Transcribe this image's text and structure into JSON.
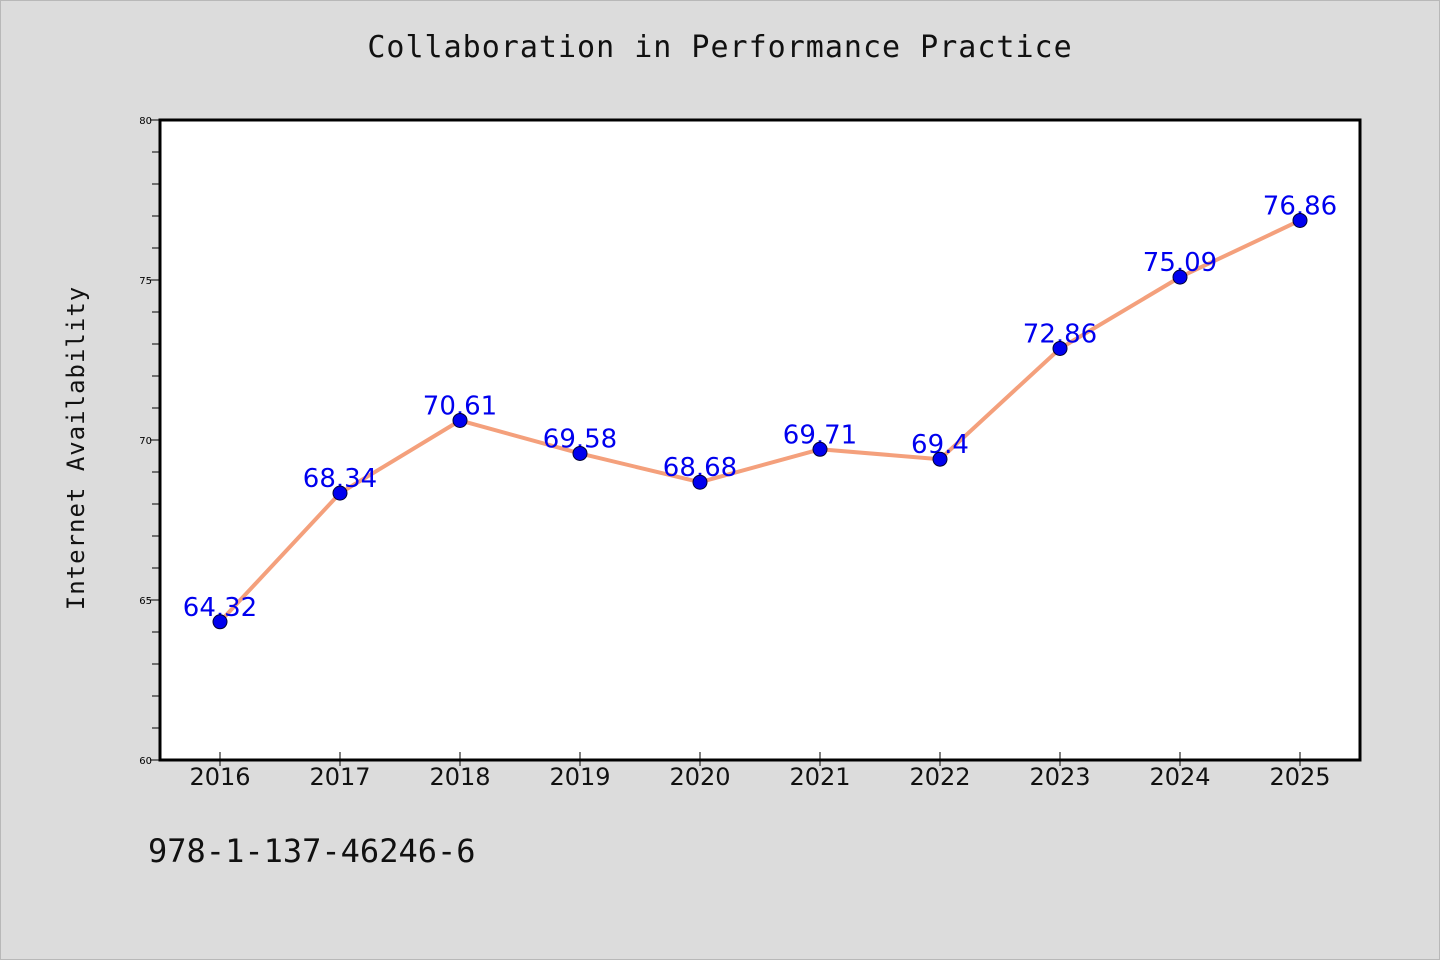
{
  "chart_data": {
    "type": "line",
    "title": "Collaboration in Performance Practice",
    "xlabel": "",
    "ylabel": "Internet Availability",
    "categories": [
      "2016",
      "2017",
      "2018",
      "2019",
      "2020",
      "2021",
      "2022",
      "2023",
      "2024",
      "2025"
    ],
    "series": [
      {
        "values": [
          64.32,
          68.34,
          70.61,
          69.58,
          68.68,
          69.71,
          69.4,
          72.86,
          75.09,
          76.86
        ],
        "data_labels": [
          "64.32",
          "68.34",
          "70.61",
          "69.58",
          "68.68",
          "69.71",
          "69.4",
          "72.86",
          "75.09",
          "76.86"
        ],
        "line_color": "#f4a07c",
        "marker_color": "#0000ee",
        "label_color": "#0000ee"
      }
    ],
    "ylim": [
      60,
      80
    ],
    "y_ticks": [
      60,
      65,
      70,
      75,
      80
    ],
    "grid": false,
    "legend": "none"
  },
  "annotation": "978-1-137-46246-6",
  "colors": {
    "background": "#dcdcdc",
    "plot_area": "#ffffff"
  }
}
